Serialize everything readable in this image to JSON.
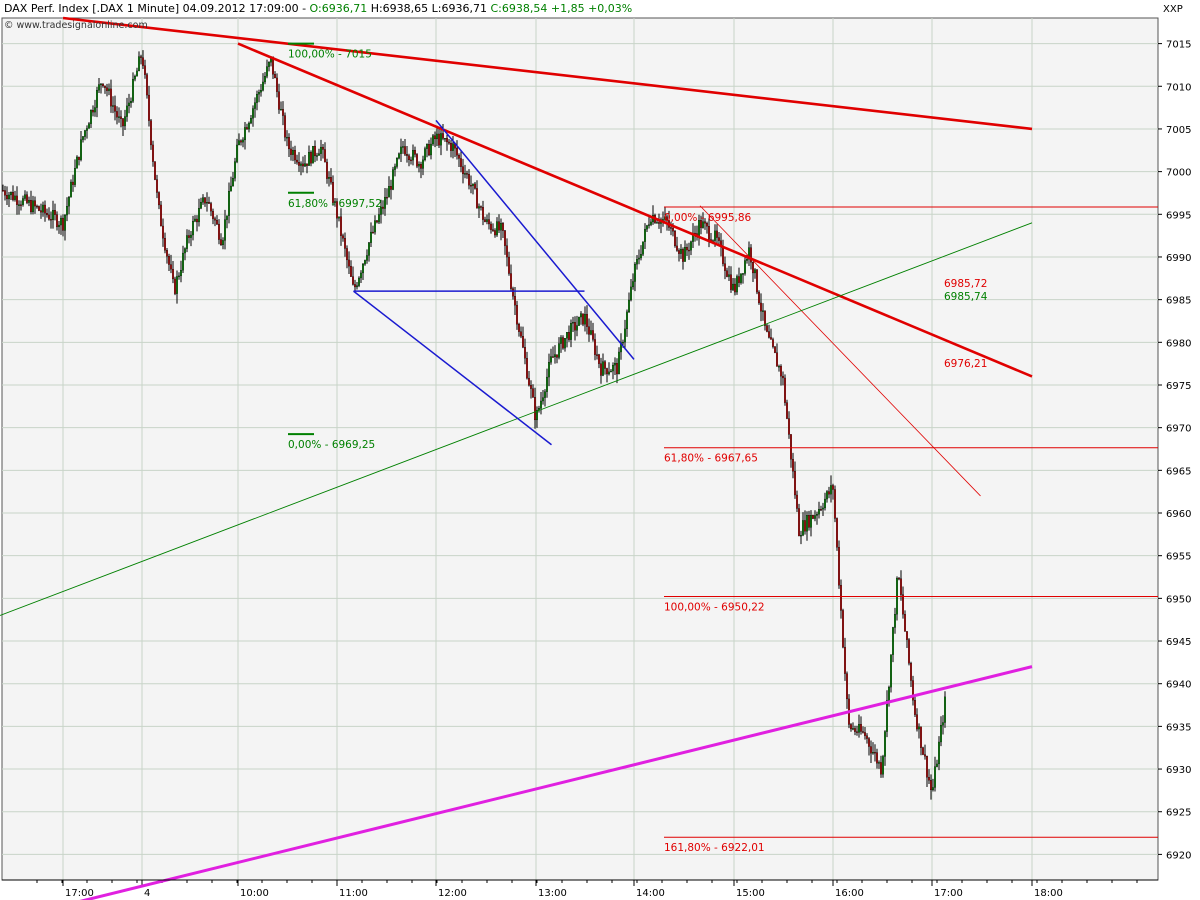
{
  "header": {
    "instrument": "DAX Perf. Index [.DAX  1 Minute] 04.09.2012 17:09:00 - ",
    "open": "O:6936,71",
    "high": "H:6938,65",
    "low": "L:6936,71",
    "close": "C:6938,54 +1,85 +0,03%",
    "watermark": "© www.tradesignalonline.com",
    "corner_label": "XXP"
  },
  "colors": {
    "green": "#008000",
    "red": "#e00000",
    "blue": "#1a1ad0",
    "magenta": "#e020e0",
    "grid": "#c8d4c8",
    "background": "#f4f4f4"
  },
  "chart_data": {
    "type": "candlestick",
    "ylim": [
      6917,
      7018
    ],
    "y_ticks": [
      7015,
      7010,
      7005,
      7000,
      6995,
      6990,
      6985,
      6980,
      6975,
      6970,
      6965,
      6960,
      6955,
      6950,
      6945,
      6940,
      6935,
      6930,
      6925,
      6920
    ],
    "y_tick_labels": [
      "7015",
      "7010",
      "7005",
      "7000",
      "6995",
      "6990",
      "6985",
      "6980",
      "6975",
      "6970",
      "6965",
      "6960",
      "6955",
      "6950",
      "6945",
      "6940",
      "6935",
      "6930",
      "6925",
      "6920"
    ],
    "x_tick_labels": [
      "17:00",
      "4",
      "10:00",
      "11:00",
      "12:00",
      "13:00",
      "14:00",
      "15:00",
      "16:00",
      "17:00",
      "18:00"
    ],
    "price_path": [
      [
        "09-03 16:30",
        6998
      ],
      [
        "09-03 17:00",
        6994
      ],
      [
        "09-03 17:10",
        7004
      ],
      [
        "09-03 17:20",
        7011
      ],
      [
        "09-03 17:30",
        7005
      ],
      [
        "09-04 09:00",
        7014
      ],
      [
        "09-04 09:10",
        6996
      ],
      [
        "09-04 09:20",
        6986
      ],
      [
        "09-04 09:30",
        6993
      ],
      [
        "09-04 09:40",
        6997
      ],
      [
        "09-04 09:50",
        6992
      ],
      [
        "09-04 10:00",
        7003
      ],
      [
        "09-04 10:10",
        7008
      ],
      [
        "09-04 10:20",
        7013
      ],
      [
        "09-04 10:30",
        7003
      ],
      [
        "09-04 10:40",
        7001
      ],
      [
        "09-04 10:50",
        7003
      ],
      [
        "09-04 11:00",
        6995
      ],
      [
        "09-04 11:10",
        6986
      ],
      [
        "09-04 11:20",
        6992
      ],
      [
        "09-04 11:30",
        6997
      ],
      [
        "09-04 11:40",
        7003
      ],
      [
        "09-04 11:50",
        7001
      ],
      [
        "09-04 12:00",
        7004
      ],
      [
        "09-04 12:10",
        7003
      ],
      [
        "09-04 12:20",
        6999
      ],
      [
        "09-04 12:30",
        6994
      ],
      [
        "09-04 12:40",
        6993
      ],
      [
        "09-04 12:50",
        6982
      ],
      [
        "09-04 13:00",
        6971
      ],
      [
        "09-04 13:10",
        6978
      ],
      [
        "09-04 13:20",
        6981
      ],
      [
        "09-04 13:30",
        6983
      ],
      [
        "09-04 13:40",
        6977
      ],
      [
        "09-04 13:50",
        6977
      ],
      [
        "09-04 14:00",
        6988
      ],
      [
        "09-04 14:10",
        6995
      ],
      [
        "09-04 14:20",
        6994
      ],
      [
        "09-04 14:30",
        6990
      ],
      [
        "09-04 14:40",
        6994
      ],
      [
        "09-04 14:50",
        6992
      ],
      [
        "09-04 15:00",
        6986
      ],
      [
        "09-04 15:10",
        6991
      ],
      [
        "09-04 15:20",
        6981
      ],
      [
        "09-04 15:30",
        6976
      ],
      [
        "09-04 15:40",
        6958
      ],
      [
        "09-04 15:50",
        6960
      ],
      [
        "09-04 16:00",
        6963
      ],
      [
        "09-04 16:10",
        6935
      ],
      [
        "09-04 16:20",
        6934
      ],
      [
        "09-04 16:30",
        6930
      ],
      [
        "09-04 16:40",
        6953
      ],
      [
        "09-04 16:50",
        6937
      ],
      [
        "09-04 17:00",
        6927
      ],
      [
        "09-04 17:09",
        6938.5
      ]
    ],
    "trendlines": [
      {
        "name": "long red resistance",
        "color": "red",
        "from": [
          "09-03 17:00",
          7018
        ],
        "to": [
          "09-04 18:00",
          7005
        ]
      },
      {
        "name": "red resistance",
        "color": "red",
        "from": [
          "09-04 10:00",
          7015
        ],
        "to": [
          "09-04 18:00",
          6976
        ]
      },
      {
        "name": "thin red",
        "color": "red",
        "from": [
          "09-04 14:40",
          6996
        ],
        "to": [
          "09-04 17:30",
          6962
        ]
      },
      {
        "name": "green support",
        "color": "green",
        "from": [
          "09-03 16:30",
          6948
        ],
        "to": [
          "09-04 18:00",
          6994
        ]
      },
      {
        "name": "magenta support",
        "color": "magenta",
        "from": [
          "09-03 17:00",
          6914
        ],
        "to": [
          "09-04 18:00",
          6942
        ]
      },
      {
        "name": "channel upper",
        "color": "blue",
        "from": [
          "09-04 12:00",
          7006
        ],
        "to": [
          "09-04 14:00",
          6978
        ]
      },
      {
        "name": "channel lower",
        "color": "blue",
        "from": [
          "09-04 11:10",
          6986
        ],
        "to": [
          "09-04 13:10",
          6968
        ]
      },
      {
        "name": "channel mid",
        "color": "blue",
        "from": [
          "09-04 11:10",
          6986
        ],
        "to": [
          "09-04 13:30",
          6986
        ]
      }
    ],
    "fib_levels_green": [
      {
        "label": "100,00% - 7015",
        "value": 7015
      },
      {
        "label": "61,80% - 6997,52",
        "value": 6997.52
      },
      {
        "label": "0,00% - 6969,25",
        "value": 6969.25
      }
    ],
    "fib_levels_red": [
      {
        "label": "0,00% - 6995,86",
        "value": 6995.86
      },
      {
        "label": "61,80% - 6967,65",
        "value": 6967.65
      },
      {
        "label": "100,00% - 6950,22",
        "value": 6950.22
      },
      {
        "label": "161,80% - 6922,01",
        "value": 6922.01
      }
    ],
    "annotations": [
      {
        "text": "6985,72",
        "color": "red",
        "value": 6985.72
      },
      {
        "text": "6985,74",
        "color": "green",
        "value": 6985.74
      },
      {
        "text": "6976,21",
        "color": "red",
        "value": 6976.21
      }
    ]
  }
}
